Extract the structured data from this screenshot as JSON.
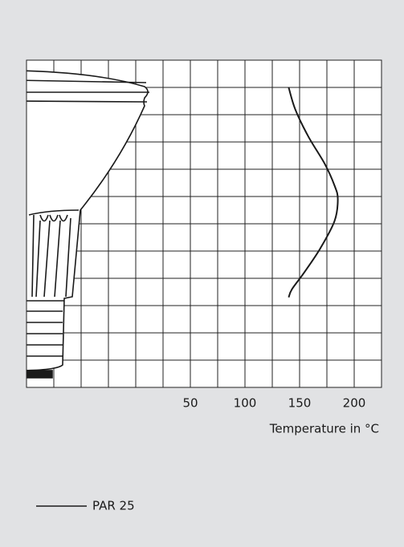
{
  "chart_data": {
    "type": "line",
    "orientation": "vertical",
    "xlabel": "Temperature in °C",
    "xlim": [
      -100,
      225
    ],
    "xticks": [
      50,
      100,
      150,
      200
    ],
    "xgrid": [
      -100,
      -75,
      -50,
      -25,
      0,
      25,
      50,
      75,
      100,
      125,
      150,
      175,
      200,
      225
    ],
    "ylim": [
      0,
      12
    ],
    "ygrid": [
      0,
      1,
      2,
      3,
      4,
      5,
      6,
      7,
      8,
      9,
      10,
      11,
      12
    ],
    "y": [
      11,
      10.2,
      9.2,
      8.2,
      7.4,
      6.9,
      6.1,
      5.1,
      4.2,
      3.6,
      3.3
    ],
    "series": [
      {
        "name": "PAR 25",
        "color": "#1a1a1a",
        "values": [
          140,
          146,
          158,
          173,
          182,
          185,
          182,
          169,
          154,
          143,
          140
        ]
      }
    ],
    "grid": true
  }
}
